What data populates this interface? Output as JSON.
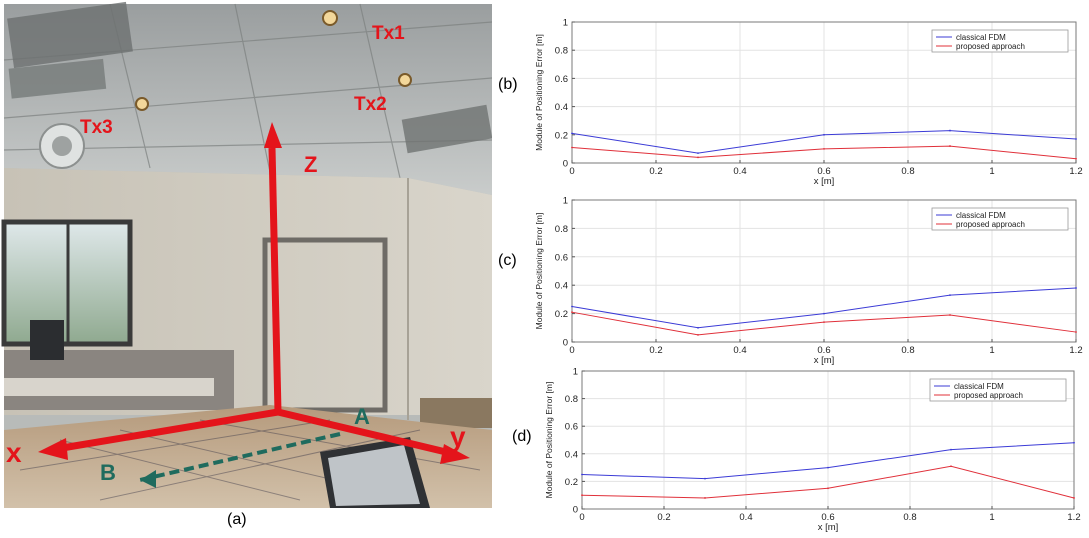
{
  "photo": {
    "caption": "(a)",
    "labels": {
      "tx1": "Tx1",
      "tx2": "Tx2",
      "tx3": "Tx3",
      "z": "Z",
      "x": "x",
      "y": "y",
      "a": "A",
      "b": "B"
    },
    "colors": {
      "axis_red": "#e4141b",
      "path_teal": "#1f6b5e"
    }
  },
  "chart_data": [
    {
      "type": "line",
      "panel_label": "(b)",
      "xlabel": "x [m]",
      "ylabel": "Module of Positioning Error [m]",
      "xlim": [
        0,
        1.2
      ],
      "ylim": [
        0,
        1
      ],
      "xticks": [
        0,
        0.2,
        0.4,
        0.6,
        0.8,
        1,
        1.2
      ],
      "yticks": [
        0,
        0.2,
        0.4,
        0.6,
        0.8,
        1
      ],
      "xtick_labels": [
        "0",
        "0.2",
        "0.4",
        "0.6",
        "0.8",
        "1",
        "1.2"
      ],
      "ytick_labels": [
        "0",
        "0.2",
        "0.4",
        "0.6",
        "0.8",
        "1"
      ],
      "grid": true,
      "legend_position": "top-right",
      "x": [
        0,
        0.3,
        0.6,
        0.9,
        1.2
      ],
      "series": [
        {
          "name": "classical FDM",
          "color": "#3b3bd6",
          "values": [
            0.21,
            0.07,
            0.2,
            0.23,
            0.17
          ]
        },
        {
          "name": "proposed approach",
          "color": "#e0303a",
          "values": [
            0.11,
            0.04,
            0.1,
            0.12,
            0.03
          ]
        }
      ]
    },
    {
      "type": "line",
      "panel_label": "(c)",
      "xlabel": "x [m]",
      "ylabel": "Module of Positioning Error [m]",
      "xlim": [
        0,
        1.2
      ],
      "ylim": [
        0,
        1
      ],
      "xticks": [
        0,
        0.2,
        0.4,
        0.6,
        0.8,
        1,
        1.2
      ],
      "yticks": [
        0,
        0.2,
        0.4,
        0.6,
        0.8,
        1
      ],
      "xtick_labels": [
        "0",
        "0.2",
        "0.4",
        "0.6",
        "0.8",
        "1",
        "1.2"
      ],
      "ytick_labels": [
        "0",
        "0.2",
        "0.4",
        "0.6",
        "0.8",
        "1"
      ],
      "grid": true,
      "legend_position": "top-right",
      "x": [
        0,
        0.3,
        0.6,
        0.9,
        1.2
      ],
      "series": [
        {
          "name": "classical FDM",
          "color": "#3b3bd6",
          "values": [
            0.25,
            0.1,
            0.2,
            0.33,
            0.38
          ]
        },
        {
          "name": "proposed approach",
          "color": "#e0303a",
          "values": [
            0.21,
            0.05,
            0.14,
            0.19,
            0.07
          ]
        }
      ]
    },
    {
      "type": "line",
      "panel_label": "(d)",
      "xlabel": "x [m]",
      "ylabel": "Module of Positioning Error [m]",
      "xlim": [
        0,
        1.2
      ],
      "ylim": [
        0,
        1
      ],
      "xticks": [
        0,
        0.2,
        0.4,
        0.6,
        0.8,
        1,
        1.2
      ],
      "yticks": [
        0,
        0.2,
        0.4,
        0.6,
        0.8,
        1
      ],
      "xtick_labels": [
        "0",
        "0.2",
        "0.4",
        "0.6",
        "0.8",
        "1",
        "1.2"
      ],
      "ytick_labels": [
        "0",
        "0.2",
        "0.4",
        "0.6",
        "0.8",
        "1"
      ],
      "grid": true,
      "legend_position": "top-right",
      "x": [
        0,
        0.3,
        0.6,
        0.9,
        1.2
      ],
      "series": [
        {
          "name": "classical FDM",
          "color": "#3b3bd6",
          "values": [
            0.25,
            0.22,
            0.3,
            0.43,
            0.48
          ]
        },
        {
          "name": "proposed approach",
          "color": "#e0303a",
          "values": [
            0.1,
            0.08,
            0.15,
            0.31,
            0.08
          ]
        }
      ]
    }
  ]
}
